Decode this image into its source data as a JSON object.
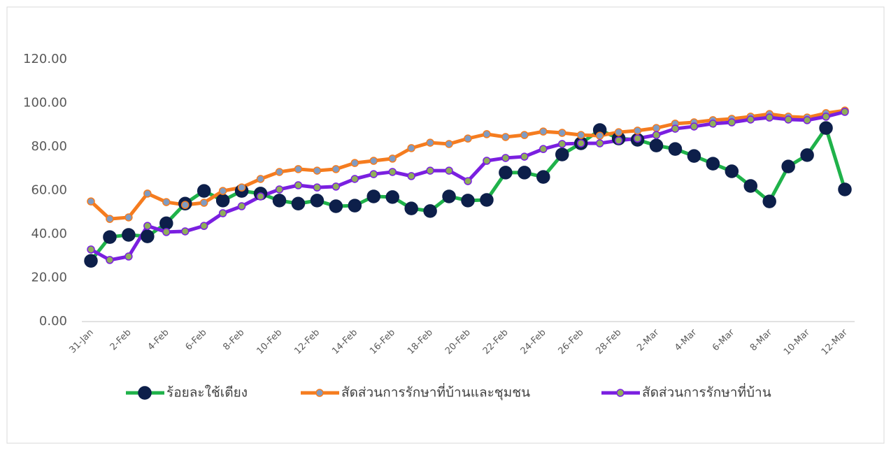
{
  "chart_data": {
    "type": "line",
    "categories": [
      "31-Jan",
      null,
      "2-Feb",
      null,
      "4-Feb",
      null,
      "6-Feb",
      null,
      "8-Feb",
      null,
      "10-Feb",
      null,
      "12-Feb",
      null,
      "14-Feb",
      null,
      "16-Feb",
      null,
      "18-Feb",
      null,
      "20-Feb",
      null,
      "22-Feb",
      null,
      "24-Feb",
      null,
      "26-Feb",
      null,
      "28-Feb",
      null,
      "2-Mar",
      null,
      "4-Mar",
      null,
      "6-Mar",
      null,
      "8-Mar",
      null,
      "10-Mar",
      null,
      "12-Mar"
    ],
    "series": [
      {
        "name": "ร้อยละใช้เตียง",
        "color": "#1fb24a",
        "marker_fill": "#0d1f4a",
        "marker_stroke": "#0d1f4a",
        "marker_size": 9,
        "values": [
          27.8,
          38.7,
          39.7,
          39,
          45,
          54,
          59.8,
          55.4,
          59.8,
          58.6,
          55.4,
          54,
          55.4,
          52.8,
          53.1,
          57.3,
          57,
          51.8,
          50.6,
          57.3,
          55.4,
          55.7,
          68.2,
          68.2,
          66.2,
          76.5,
          81.6,
          87.7,
          83.8,
          83.2,
          80.6,
          79,
          75.8,
          72.3,
          68.8,
          62.1,
          55,
          71,
          76.2,
          88.6,
          60.5
        ]
      },
      {
        "name": "สัดส่วนการรักษาที่บ้านและชุมชน",
        "color": "#f57c1f",
        "marker_fill": "#7f9cc4",
        "marker_stroke": "#f57c1f",
        "marker_size": 5,
        "values": [
          55,
          47,
          47.7,
          58.6,
          54.7,
          53.4,
          54.4,
          59.8,
          61.4,
          65.3,
          68.5,
          69.8,
          69.1,
          69.8,
          72.6,
          73.6,
          74.6,
          79.4,
          81.9,
          81.3,
          83.8,
          85.8,
          84.5,
          85.4,
          87,
          86.4,
          85.4,
          85.1,
          86.7,
          87.4,
          88.6,
          90.6,
          91.2,
          92.2,
          92.8,
          93.8,
          95,
          93.8,
          93.4,
          95.4,
          96.6
        ]
      },
      {
        "name": "สัดส่วนการรักษาที่บ้าน",
        "color": "#7a1fe0",
        "marker_fill": "#8fae5a",
        "marker_stroke": "#7a1fe0",
        "marker_size": 5,
        "values": [
          33,
          28.2,
          29.8,
          43.8,
          41,
          41.3,
          43.8,
          49.6,
          52.8,
          57.3,
          60.5,
          62.4,
          61.4,
          61.8,
          65.3,
          67.5,
          68.5,
          66.6,
          69.1,
          69.1,
          64.3,
          73.6,
          74.9,
          75.5,
          79,
          81.3,
          81.6,
          81.6,
          82.9,
          83.8,
          85.4,
          88.3,
          89.3,
          90.6,
          91.2,
          92.5,
          93.4,
          92.5,
          92.2,
          93.8,
          96
        ]
      }
    ],
    "ylim": [
      0,
      120
    ],
    "yticks": [
      {
        "value": 0,
        "label": "0.00"
      },
      {
        "value": 20,
        "label": "20.00"
      },
      {
        "value": 40,
        "label": "40.00"
      },
      {
        "value": 60,
        "label": "60.00"
      },
      {
        "value": 80,
        "label": "80.00"
      },
      {
        "value": 100,
        "label": "100.00"
      },
      {
        "value": 120,
        "label": "120.00"
      }
    ],
    "grid": false,
    "legend": "bottom"
  }
}
